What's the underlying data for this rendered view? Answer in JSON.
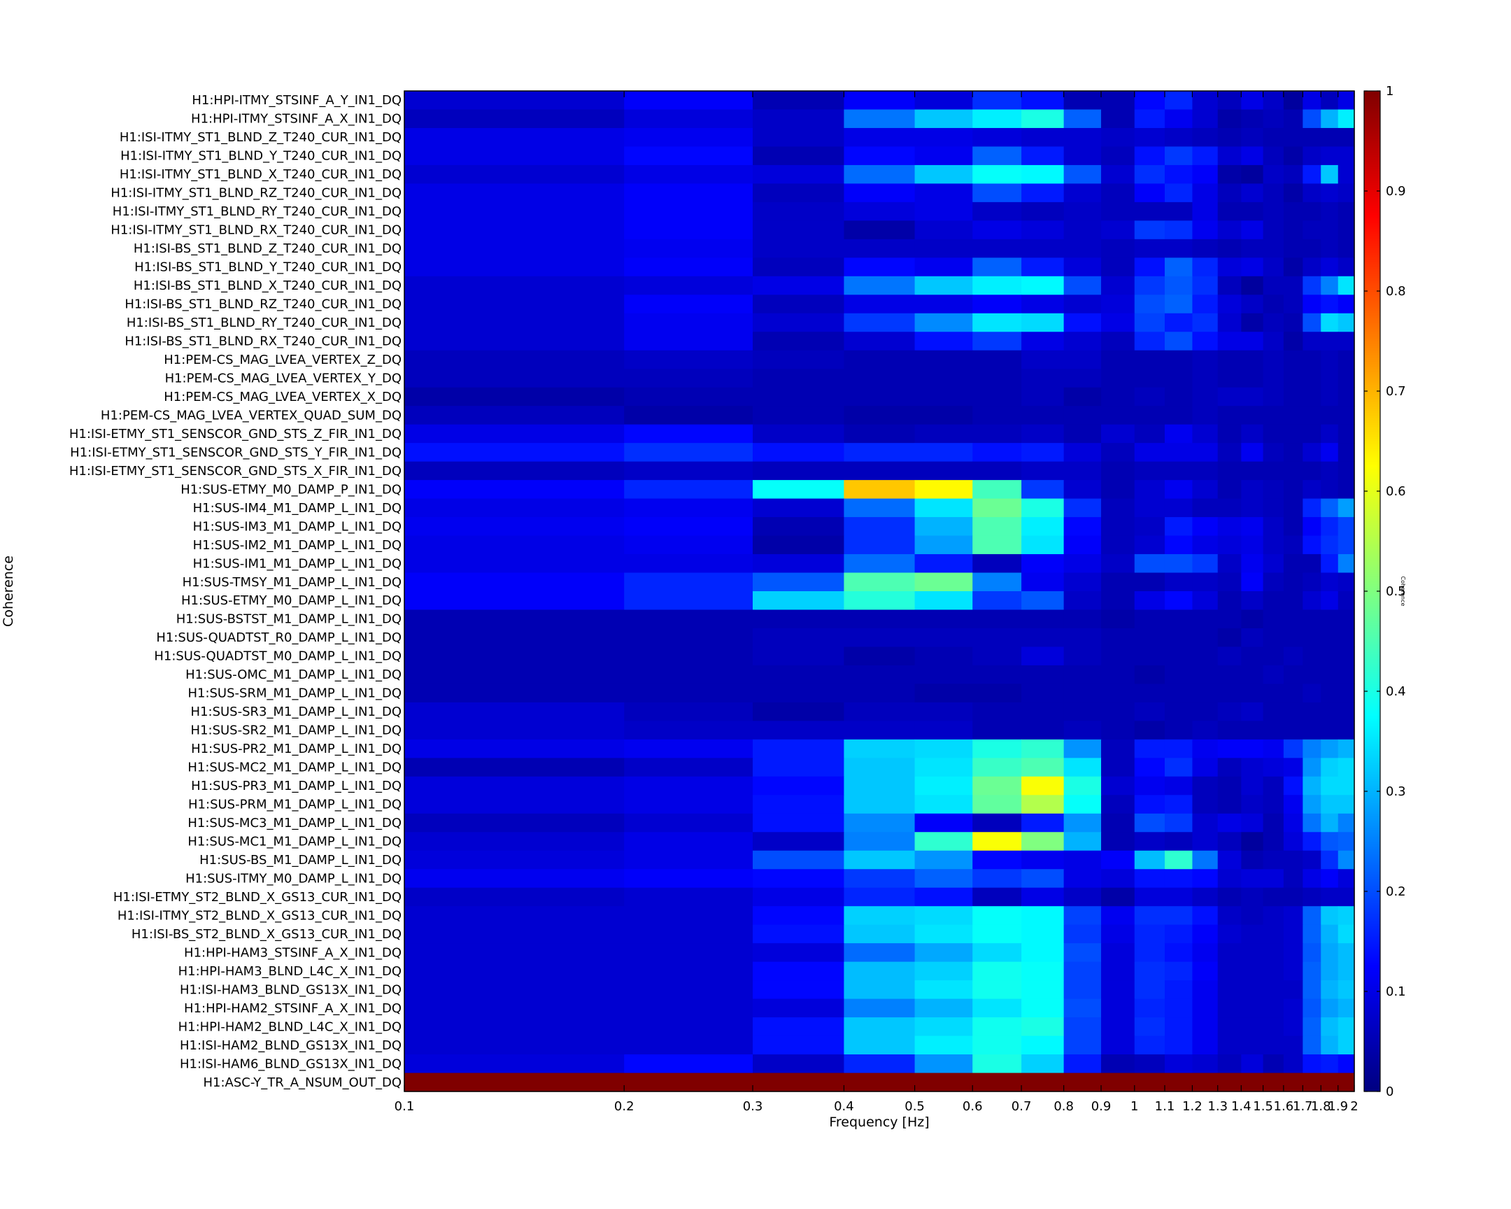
{
  "chart_data": {
    "type": "heatmap",
    "xlabel": "Frequency [Hz]",
    "ylabel": "Coherence",
    "colorbar_label": "Coherence",
    "xscale": "log",
    "xlim": [
      0.1,
      2
    ],
    "zlim": [
      0,
      1
    ],
    "colormap": "jet",
    "x_ticks": [
      {
        "v": 0.1,
        "label": "0.1"
      },
      {
        "v": 0.2,
        "label": "0.2"
      },
      {
        "v": 0.3,
        "label": "0.3"
      },
      {
        "v": 0.4,
        "label": "0.4"
      },
      {
        "v": 0.5,
        "label": "0.5"
      },
      {
        "v": 0.6,
        "label": "0.6"
      },
      {
        "v": 0.7,
        "label": "0.7"
      },
      {
        "v": 0.8,
        "label": "0.8"
      },
      {
        "v": 0.9,
        "label": "0.9"
      },
      {
        "v": 1.0,
        "label": "1"
      },
      {
        "v": 1.1,
        "label": "1.1"
      },
      {
        "v": 1.2,
        "label": "1.2"
      },
      {
        "v": 1.3,
        "label": "1.3"
      },
      {
        "v": 1.4,
        "label": "1.4"
      },
      {
        "v": 1.5,
        "label": "1.5"
      },
      {
        "v": 1.6,
        "label": "1.6"
      },
      {
        "v": 1.7,
        "label": "1.7"
      },
      {
        "v": 1.8,
        "label": "1.8"
      },
      {
        "v": 1.9,
        "label": "1.9"
      },
      {
        "v": 2.0,
        "label": "2"
      }
    ],
    "colorbar_ticks": [
      "0",
      "0.1",
      "0.2",
      "0.3",
      "0.4",
      "0.5",
      "0.6",
      "0.7",
      "0.8",
      "0.9",
      "1"
    ],
    "x_edges": [
      0.1,
      0.2,
      0.3,
      0.4,
      0.5,
      0.6,
      0.7,
      0.8,
      0.9,
      1.0,
      1.1,
      1.2,
      1.3,
      1.4,
      1.5,
      1.6,
      1.7,
      1.8,
      1.9,
      2.0
    ],
    "channels": [
      "H1:HPI-ITMY_STSINF_A_Y_IN1_DQ",
      "H1:HPI-ITMY_STSINF_A_X_IN1_DQ",
      "H1:ISI-ITMY_ST1_BLND_Z_T240_CUR_IN1_DQ",
      "H1:ISI-ITMY_ST1_BLND_Y_T240_CUR_IN1_DQ",
      "H1:ISI-ITMY_ST1_BLND_X_T240_CUR_IN1_DQ",
      "H1:ISI-ITMY_ST1_BLND_RZ_T240_CUR_IN1_DQ",
      "H1:ISI-ITMY_ST1_BLND_RY_T240_CUR_IN1_DQ",
      "H1:ISI-ITMY_ST1_BLND_RX_T240_CUR_IN1_DQ",
      "H1:ISI-BS_ST1_BLND_Z_T240_CUR_IN1_DQ",
      "H1:ISI-BS_ST1_BLND_Y_T240_CUR_IN1_DQ",
      "H1:ISI-BS_ST1_BLND_X_T240_CUR_IN1_DQ",
      "H1:ISI-BS_ST1_BLND_RZ_T240_CUR_IN1_DQ",
      "H1:ISI-BS_ST1_BLND_RY_T240_CUR_IN1_DQ",
      "H1:ISI-BS_ST1_BLND_RX_T240_CUR_IN1_DQ",
      "H1:PEM-CS_MAG_LVEA_VERTEX_Z_DQ",
      "H1:PEM-CS_MAG_LVEA_VERTEX_Y_DQ",
      "H1:PEM-CS_MAG_LVEA_VERTEX_X_DQ",
      "H1:PEM-CS_MAG_LVEA_VERTEX_QUAD_SUM_DQ",
      "H1:ISI-ETMY_ST1_SENSCOR_GND_STS_Z_FIR_IN1_DQ",
      "H1:ISI-ETMY_ST1_SENSCOR_GND_STS_Y_FIR_IN1_DQ",
      "H1:ISI-ETMY_ST1_SENSCOR_GND_STS_X_FIR_IN1_DQ",
      "H1:SUS-ETMY_M0_DAMP_P_IN1_DQ",
      "H1:SUS-IM4_M1_DAMP_L_IN1_DQ",
      "H1:SUS-IM3_M1_DAMP_L_IN1_DQ",
      "H1:SUS-IM2_M1_DAMP_L_IN1_DQ",
      "H1:SUS-IM1_M1_DAMP_L_IN1_DQ",
      "H1:SUS-TMSY_M1_DAMP_L_IN1_DQ",
      "H1:SUS-ETMY_M0_DAMP_L_IN1_DQ",
      "H1:SUS-BSTST_M1_DAMP_L_IN1_DQ",
      "H1:SUS-QUADTST_R0_DAMP_L_IN1_DQ",
      "H1:SUS-QUADTST_M0_DAMP_L_IN1_DQ",
      "H1:SUS-OMC_M1_DAMP_L_IN1_DQ",
      "H1:SUS-SRM_M1_DAMP_L_IN1_DQ",
      "H1:SUS-SR3_M1_DAMP_L_IN1_DQ",
      "H1:SUS-SR2_M1_DAMP_L_IN1_DQ",
      "H1:SUS-PR2_M1_DAMP_L_IN1_DQ",
      "H1:SUS-MC2_M1_DAMP_L_IN1_DQ",
      "H1:SUS-PR3_M1_DAMP_L_IN1_DQ",
      "H1:SUS-PRM_M1_DAMP_L_IN1_DQ",
      "H1:SUS-MC3_M1_DAMP_L_IN1_DQ",
      "H1:SUS-MC1_M1_DAMP_L_IN1_DQ",
      "H1:SUS-BS_M1_DAMP_L_IN1_DQ",
      "H1:SUS-ITMY_M0_DAMP_L_IN1_DQ",
      "H1:ISI-ETMY_ST2_BLND_X_GS13_CUR_IN1_DQ",
      "H1:ISI-ITMY_ST2_BLND_X_GS13_CUR_IN1_DQ",
      "H1:ISI-BS_ST2_BLND_X_GS13_CUR_IN1_DQ",
      "H1:HPI-HAM3_STSINF_A_X_IN1_DQ",
      "H1:HPI-HAM3_BLND_L4C_X_IN1_DQ",
      "H1:ISI-HAM3_BLND_GS13X_IN1_DQ",
      "H1:HPI-HAM2_STSINF_A_X_IN1_DQ",
      "H1:HPI-HAM2_BLND_L4C_X_IN1_DQ",
      "H1:ISI-HAM2_BLND_GS13X_IN1_DQ",
      "H1:ISI-HAM6_BLND_GS13X_IN1_DQ",
      "H1:ASC-Y_TR_A_NSUM_OUT_DQ"
    ],
    "values": [
      [
        0.08,
        0.12,
        0.05,
        0.12,
        0.09,
        0.17,
        0.14,
        0.05,
        0.05,
        0.13,
        0.16,
        0.08,
        0.06,
        0.1,
        0.07,
        0.03,
        0.1,
        0.06,
        0.1
      ],
      [
        0.06,
        0.09,
        0.07,
        0.24,
        0.32,
        0.36,
        0.4,
        0.22,
        0.05,
        0.15,
        0.11,
        0.08,
        0.04,
        0.05,
        0.06,
        0.05,
        0.2,
        0.3,
        0.36
      ],
      [
        0.1,
        0.11,
        0.07,
        0.1,
        0.1,
        0.09,
        0.08,
        0.08,
        0.07,
        0.08,
        0.07,
        0.06,
        0.05,
        0.06,
        0.05,
        0.05,
        0.05,
        0.05,
        0.05
      ],
      [
        0.1,
        0.13,
        0.05,
        0.13,
        0.11,
        0.22,
        0.15,
        0.08,
        0.06,
        0.14,
        0.18,
        0.15,
        0.08,
        0.1,
        0.06,
        0.04,
        0.07,
        0.08,
        0.08
      ],
      [
        0.08,
        0.1,
        0.09,
        0.23,
        0.32,
        0.38,
        0.37,
        0.21,
        0.08,
        0.17,
        0.14,
        0.12,
        0.04,
        0.03,
        0.07,
        0.06,
        0.15,
        0.32,
        0.08
      ],
      [
        0.1,
        0.12,
        0.06,
        0.12,
        0.1,
        0.2,
        0.15,
        0.08,
        0.06,
        0.12,
        0.16,
        0.1,
        0.06,
        0.08,
        0.06,
        0.04,
        0.07,
        0.08,
        0.07
      ],
      [
        0.1,
        0.12,
        0.07,
        0.09,
        0.1,
        0.07,
        0.06,
        0.07,
        0.06,
        0.06,
        0.06,
        0.1,
        0.05,
        0.05,
        0.06,
        0.05,
        0.05,
        0.06,
        0.05
      ],
      [
        0.1,
        0.12,
        0.07,
        0.04,
        0.08,
        0.1,
        0.09,
        0.07,
        0.08,
        0.18,
        0.17,
        0.11,
        0.08,
        0.1,
        0.06,
        0.05,
        0.06,
        0.06,
        0.05
      ],
      [
        0.1,
        0.11,
        0.07,
        0.07,
        0.07,
        0.07,
        0.07,
        0.07,
        0.06,
        0.07,
        0.07,
        0.06,
        0.05,
        0.06,
        0.06,
        0.05,
        0.05,
        0.06,
        0.05
      ],
      [
        0.1,
        0.12,
        0.06,
        0.13,
        0.11,
        0.22,
        0.15,
        0.09,
        0.06,
        0.14,
        0.22,
        0.16,
        0.09,
        0.1,
        0.07,
        0.04,
        0.07,
        0.09,
        0.07
      ],
      [
        0.08,
        0.09,
        0.1,
        0.24,
        0.32,
        0.36,
        0.37,
        0.2,
        0.08,
        0.18,
        0.21,
        0.17,
        0.06,
        0.03,
        0.06,
        0.06,
        0.18,
        0.25,
        0.35
      ],
      [
        0.08,
        0.12,
        0.06,
        0.1,
        0.1,
        0.12,
        0.1,
        0.08,
        0.09,
        0.2,
        0.22,
        0.15,
        0.09,
        0.07,
        0.05,
        0.06,
        0.12,
        0.14,
        0.12
      ],
      [
        0.08,
        0.11,
        0.08,
        0.18,
        0.26,
        0.35,
        0.34,
        0.14,
        0.1,
        0.19,
        0.15,
        0.17,
        0.08,
        0.04,
        0.06,
        0.05,
        0.2,
        0.34,
        0.32
      ],
      [
        0.08,
        0.11,
        0.05,
        0.08,
        0.14,
        0.18,
        0.1,
        0.08,
        0.06,
        0.16,
        0.2,
        0.14,
        0.1,
        0.1,
        0.07,
        0.04,
        0.07,
        0.07,
        0.07
      ],
      [
        0.06,
        0.07,
        0.06,
        0.05,
        0.05,
        0.05,
        0.07,
        0.07,
        0.05,
        0.05,
        0.05,
        0.06,
        0.05,
        0.05,
        0.06,
        0.05,
        0.05,
        0.06,
        0.05
      ],
      [
        0.06,
        0.06,
        0.05,
        0.05,
        0.05,
        0.05,
        0.06,
        0.06,
        0.05,
        0.05,
        0.05,
        0.06,
        0.05,
        0.05,
        0.06,
        0.05,
        0.05,
        0.06,
        0.05
      ],
      [
        0.04,
        0.05,
        0.05,
        0.05,
        0.05,
        0.05,
        0.06,
        0.04,
        0.05,
        0.06,
        0.05,
        0.06,
        0.07,
        0.07,
        0.06,
        0.05,
        0.05,
        0.06,
        0.05
      ],
      [
        0.06,
        0.04,
        0.05,
        0.04,
        0.04,
        0.05,
        0.05,
        0.05,
        0.05,
        0.05,
        0.05,
        0.06,
        0.05,
        0.05,
        0.05,
        0.05,
        0.05,
        0.05,
        0.05
      ],
      [
        0.1,
        0.13,
        0.07,
        0.05,
        0.06,
        0.06,
        0.07,
        0.05,
        0.08,
        0.06,
        0.11,
        0.08,
        0.05,
        0.07,
        0.05,
        0.05,
        0.05,
        0.07,
        0.05
      ],
      [
        0.14,
        0.17,
        0.14,
        0.16,
        0.16,
        0.14,
        0.15,
        0.09,
        0.06,
        0.1,
        0.1,
        0.1,
        0.06,
        0.11,
        0.06,
        0.05,
        0.08,
        0.11,
        0.05
      ],
      [
        0.06,
        0.07,
        0.06,
        0.06,
        0.06,
        0.06,
        0.07,
        0.07,
        0.05,
        0.06,
        0.06,
        0.06,
        0.05,
        0.05,
        0.05,
        0.05,
        0.05,
        0.06,
        0.05
      ],
      [
        0.12,
        0.16,
        0.38,
        0.68,
        0.63,
        0.44,
        0.18,
        0.08,
        0.05,
        0.08,
        0.11,
        0.08,
        0.05,
        0.07,
        0.06,
        0.05,
        0.07,
        0.06,
        0.05
      ],
      [
        0.1,
        0.11,
        0.08,
        0.23,
        0.35,
        0.48,
        0.4,
        0.17,
        0.06,
        0.08,
        0.08,
        0.06,
        0.06,
        0.07,
        0.06,
        0.05,
        0.16,
        0.22,
        0.28
      ],
      [
        0.11,
        0.12,
        0.05,
        0.17,
        0.3,
        0.45,
        0.36,
        0.13,
        0.06,
        0.07,
        0.15,
        0.12,
        0.1,
        0.11,
        0.07,
        0.05,
        0.12,
        0.16,
        0.19
      ],
      [
        0.1,
        0.11,
        0.04,
        0.17,
        0.28,
        0.45,
        0.35,
        0.12,
        0.06,
        0.08,
        0.13,
        0.1,
        0.09,
        0.1,
        0.07,
        0.06,
        0.14,
        0.17,
        0.19
      ],
      [
        0.1,
        0.1,
        0.09,
        0.23,
        0.15,
        0.06,
        0.12,
        0.1,
        0.07,
        0.2,
        0.2,
        0.18,
        0.07,
        0.11,
        0.08,
        0.05,
        0.05,
        0.15,
        0.25
      ],
      [
        0.12,
        0.16,
        0.21,
        0.45,
        0.48,
        0.25,
        0.11,
        0.08,
        0.05,
        0.05,
        0.07,
        0.07,
        0.06,
        0.12,
        0.06,
        0.05,
        0.06,
        0.08,
        0.07
      ],
      [
        0.12,
        0.16,
        0.33,
        0.41,
        0.35,
        0.18,
        0.21,
        0.07,
        0.05,
        0.1,
        0.13,
        0.09,
        0.05,
        0.07,
        0.05,
        0.05,
        0.08,
        0.1,
        0.06
      ],
      [
        0.05,
        0.05,
        0.05,
        0.05,
        0.05,
        0.05,
        0.05,
        0.05,
        0.04,
        0.05,
        0.05,
        0.05,
        0.05,
        0.04,
        0.05,
        0.05,
        0.05,
        0.05,
        0.05
      ],
      [
        0.05,
        0.05,
        0.06,
        0.06,
        0.06,
        0.06,
        0.06,
        0.06,
        0.05,
        0.05,
        0.05,
        0.05,
        0.04,
        0.06,
        0.05,
        0.05,
        0.05,
        0.05,
        0.05
      ],
      [
        0.05,
        0.05,
        0.06,
        0.04,
        0.05,
        0.06,
        0.09,
        0.06,
        0.05,
        0.05,
        0.05,
        0.05,
        0.06,
        0.05,
        0.05,
        0.06,
        0.05,
        0.05,
        0.05
      ],
      [
        0.05,
        0.05,
        0.05,
        0.05,
        0.05,
        0.05,
        0.05,
        0.05,
        0.05,
        0.04,
        0.05,
        0.05,
        0.05,
        0.05,
        0.06,
        0.05,
        0.05,
        0.05,
        0.05
      ],
      [
        0.05,
        0.05,
        0.05,
        0.05,
        0.04,
        0.04,
        0.05,
        0.05,
        0.05,
        0.05,
        0.05,
        0.05,
        0.05,
        0.05,
        0.05,
        0.05,
        0.06,
        0.05,
        0.05
      ],
      [
        0.08,
        0.06,
        0.04,
        0.06,
        0.06,
        0.05,
        0.05,
        0.05,
        0.05,
        0.06,
        0.05,
        0.05,
        0.06,
        0.07,
        0.05,
        0.05,
        0.05,
        0.05,
        0.05
      ],
      [
        0.08,
        0.07,
        0.07,
        0.07,
        0.07,
        0.05,
        0.05,
        0.06,
        0.05,
        0.04,
        0.05,
        0.06,
        0.05,
        0.05,
        0.05,
        0.05,
        0.05,
        0.05,
        0.05
      ],
      [
        0.1,
        0.11,
        0.15,
        0.33,
        0.34,
        0.4,
        0.42,
        0.27,
        0.06,
        0.15,
        0.15,
        0.11,
        0.12,
        0.12,
        0.11,
        0.18,
        0.25,
        0.28,
        0.3
      ],
      [
        0.05,
        0.07,
        0.15,
        0.32,
        0.35,
        0.43,
        0.45,
        0.35,
        0.06,
        0.13,
        0.17,
        0.1,
        0.06,
        0.08,
        0.09,
        0.1,
        0.27,
        0.33,
        0.34
      ],
      [
        0.09,
        0.1,
        0.13,
        0.32,
        0.36,
        0.48,
        0.62,
        0.4,
        0.08,
        0.11,
        0.1,
        0.06,
        0.05,
        0.08,
        0.06,
        0.14,
        0.3,
        0.34,
        0.34
      ],
      [
        0.09,
        0.1,
        0.14,
        0.32,
        0.35,
        0.47,
        0.55,
        0.38,
        0.06,
        0.14,
        0.15,
        0.06,
        0.05,
        0.07,
        0.06,
        0.11,
        0.28,
        0.32,
        0.32
      ],
      [
        0.06,
        0.08,
        0.14,
        0.26,
        0.12,
        0.06,
        0.15,
        0.27,
        0.05,
        0.2,
        0.18,
        0.08,
        0.1,
        0.09,
        0.05,
        0.1,
        0.24,
        0.3,
        0.25
      ],
      [
        0.08,
        0.1,
        0.07,
        0.25,
        0.42,
        0.62,
        0.5,
        0.3,
        0.05,
        0.07,
        0.06,
        0.08,
        0.06,
        0.03,
        0.05,
        0.09,
        0.15,
        0.21,
        0.22
      ],
      [
        0.09,
        0.1,
        0.2,
        0.32,
        0.27,
        0.13,
        0.11,
        0.1,
        0.12,
        0.31,
        0.42,
        0.24,
        0.09,
        0.05,
        0.06,
        0.06,
        0.07,
        0.17,
        0.26
      ],
      [
        0.11,
        0.12,
        0.13,
        0.18,
        0.22,
        0.18,
        0.2,
        0.1,
        0.09,
        0.14,
        0.14,
        0.13,
        0.08,
        0.09,
        0.09,
        0.06,
        0.1,
        0.12,
        0.09
      ],
      [
        0.07,
        0.08,
        0.1,
        0.16,
        0.14,
        0.06,
        0.1,
        0.07,
        0.04,
        0.09,
        0.09,
        0.07,
        0.05,
        0.06,
        0.05,
        0.05,
        0.06,
        0.07,
        0.07
      ],
      [
        0.08,
        0.08,
        0.13,
        0.33,
        0.34,
        0.38,
        0.37,
        0.19,
        0.11,
        0.17,
        0.17,
        0.14,
        0.07,
        0.06,
        0.07,
        0.08,
        0.22,
        0.32,
        0.33
      ],
      [
        0.08,
        0.08,
        0.14,
        0.32,
        0.35,
        0.38,
        0.37,
        0.18,
        0.1,
        0.16,
        0.15,
        0.12,
        0.08,
        0.07,
        0.07,
        0.08,
        0.22,
        0.3,
        0.34
      ],
      [
        0.08,
        0.08,
        0.09,
        0.23,
        0.29,
        0.34,
        0.37,
        0.2,
        0.09,
        0.16,
        0.14,
        0.11,
        0.07,
        0.07,
        0.07,
        0.08,
        0.21,
        0.29,
        0.31
      ],
      [
        0.08,
        0.08,
        0.13,
        0.31,
        0.33,
        0.39,
        0.38,
        0.19,
        0.09,
        0.17,
        0.16,
        0.12,
        0.07,
        0.07,
        0.07,
        0.08,
        0.22,
        0.29,
        0.31
      ],
      [
        0.08,
        0.08,
        0.13,
        0.31,
        0.35,
        0.39,
        0.38,
        0.19,
        0.09,
        0.17,
        0.15,
        0.11,
        0.07,
        0.07,
        0.07,
        0.07,
        0.22,
        0.3,
        0.32
      ],
      [
        0.08,
        0.08,
        0.09,
        0.25,
        0.3,
        0.35,
        0.38,
        0.2,
        0.09,
        0.16,
        0.15,
        0.11,
        0.07,
        0.07,
        0.07,
        0.08,
        0.21,
        0.28,
        0.3
      ],
      [
        0.08,
        0.08,
        0.14,
        0.32,
        0.34,
        0.39,
        0.4,
        0.19,
        0.09,
        0.17,
        0.15,
        0.11,
        0.07,
        0.07,
        0.07,
        0.08,
        0.22,
        0.31,
        0.33
      ],
      [
        0.08,
        0.08,
        0.14,
        0.32,
        0.36,
        0.39,
        0.37,
        0.19,
        0.09,
        0.16,
        0.15,
        0.11,
        0.07,
        0.07,
        0.07,
        0.07,
        0.22,
        0.3,
        0.33
      ],
      [
        0.09,
        0.13,
        0.07,
        0.16,
        0.27,
        0.4,
        0.33,
        0.15,
        0.05,
        0.06,
        0.09,
        0.08,
        0.06,
        0.09,
        0.05,
        0.07,
        0.14,
        0.15,
        0.13
      ],
      [
        1.0,
        1.0,
        1.0,
        1.0,
        1.0,
        1.0,
        1.0,
        1.0,
        1.0,
        1.0,
        1.0,
        1.0,
        1.0,
        1.0,
        1.0,
        1.0,
        1.0,
        1.0,
        1.0
      ]
    ]
  }
}
